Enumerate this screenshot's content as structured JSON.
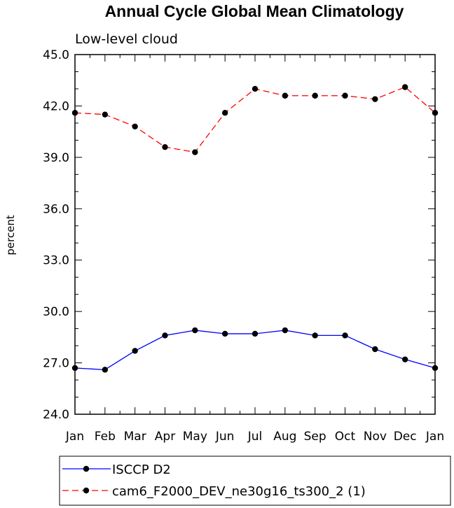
{
  "chart_data": {
    "type": "line",
    "title": "Annual Cycle Global Mean Climatology",
    "subtitle": "Low-level cloud",
    "ylabel": "percent",
    "xlabel": "",
    "categories": [
      "Jan",
      "Feb",
      "Mar",
      "Apr",
      "May",
      "Jun",
      "Jul",
      "Aug",
      "Sep",
      "Oct",
      "Nov",
      "Dec",
      "Jan"
    ],
    "ylim": [
      24.0,
      45.0
    ],
    "yticks": [
      "24.0",
      "27.0",
      "30.0",
      "33.0",
      "36.0",
      "39.0",
      "42.0",
      "45.0"
    ],
    "grid": false,
    "legend_position": "bottom",
    "series": [
      {
        "name": "ISCCP D2",
        "color": "#0000ff",
        "line_style": "solid",
        "marker": "filled-circle",
        "values": [
          26.7,
          26.6,
          27.7,
          28.6,
          28.9,
          28.7,
          28.7,
          28.9,
          28.6,
          28.6,
          27.8,
          27.2,
          26.7
        ]
      },
      {
        "name": "cam6_F2000_DEV_ne30g16_ts300_2 (1)",
        "color": "#ff0000",
        "line_style": "dashed",
        "marker": "filled-circle",
        "values": [
          41.6,
          41.5,
          40.8,
          39.6,
          39.3,
          41.6,
          43.0,
          42.6,
          42.6,
          42.6,
          42.4,
          43.1,
          41.6
        ]
      }
    ]
  }
}
